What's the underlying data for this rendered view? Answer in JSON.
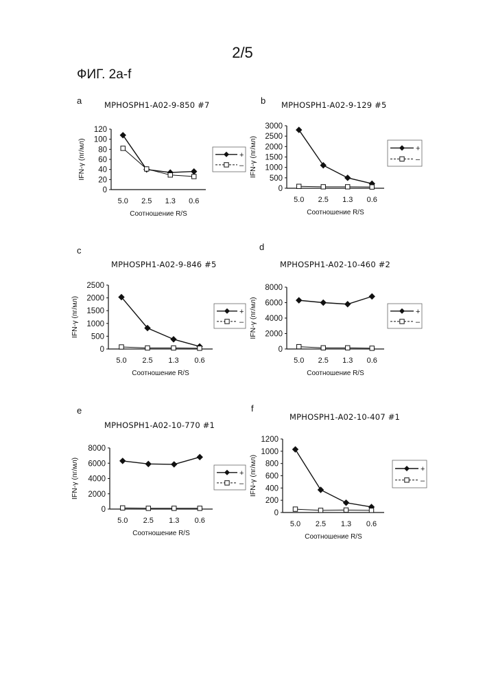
{
  "page": {
    "number": "2/5",
    "figure_title": "ФИГ. 2a-f"
  },
  "legend_labels": {
    "plus": "+",
    "minus": "–"
  },
  "chart_data": [
    {
      "id": "a",
      "type": "line",
      "title": "MPHOSPH1-A02-9-850 #7",
      "xlabel": "Соотношение R/S",
      "ylabel": "IFN-γ (пг/мл)",
      "categories": [
        "5.0",
        "2.5",
        "1.3",
        "0.6"
      ],
      "ylim": [
        0,
        120
      ],
      "yticks": [
        "0",
        "20",
        "40",
        "60",
        "80",
        "100",
        "120"
      ],
      "series": [
        {
          "name": "+",
          "marker": "diamond",
          "values": [
            108,
            40,
            34,
            36
          ]
        },
        {
          "name": "–",
          "marker": "square",
          "values": [
            82,
            41,
            29,
            26
          ]
        }
      ]
    },
    {
      "id": "b",
      "type": "line",
      "title": "MPHOSPH1-A02-9-129 #5",
      "xlabel": "Соотношение R/S",
      "ylabel": "IFN-γ (пг/мл)",
      "categories": [
        "5.0",
        "2.5",
        "1.3",
        "0.6"
      ],
      "ylim": [
        0,
        3000
      ],
      "yticks": [
        "0",
        "500",
        "1000",
        "1500",
        "2000",
        "2500",
        "3000"
      ],
      "series": [
        {
          "name": "+",
          "marker": "diamond",
          "values": [
            2800,
            1100,
            500,
            220
          ]
        },
        {
          "name": "–",
          "marker": "square",
          "values": [
            90,
            70,
            70,
            60
          ]
        }
      ]
    },
    {
      "id": "c",
      "type": "line",
      "title": "MPHOSPH1-A02-9-846 #5",
      "xlabel": "Соотношение R/S",
      "ylabel": "IFN-γ (пг/мл)",
      "categories": [
        "5.0",
        "2.5",
        "1.3",
        "0.6"
      ],
      "ylim": [
        0,
        2500
      ],
      "yticks": [
        "0",
        "500",
        "1000",
        "1500",
        "2000",
        "2500"
      ],
      "series": [
        {
          "name": "+",
          "marker": "diamond",
          "values": [
            2030,
            820,
            380,
            100
          ]
        },
        {
          "name": "–",
          "marker": "square",
          "values": [
            80,
            40,
            40,
            30
          ]
        }
      ]
    },
    {
      "id": "d",
      "type": "line",
      "title": "MPHOSPH1-A02-10-460 #2",
      "xlabel": "Соотношение R/S",
      "ylabel": "IFN-γ (пг/мл)",
      "categories": [
        "5.0",
        "2.5",
        "1.3",
        "0.6"
      ],
      "ylim": [
        0,
        8000
      ],
      "yticks": [
        "0",
        "2000",
        "4000",
        "6000",
        "8000"
      ],
      "series": [
        {
          "name": "+",
          "marker": "diamond",
          "values": [
            6300,
            6000,
            5800,
            6800
          ]
        },
        {
          "name": "–",
          "marker": "square",
          "values": [
            300,
            150,
            150,
            100
          ]
        }
      ]
    },
    {
      "id": "e",
      "type": "line",
      "title": "MPHOSPH1-A02-10-770 #1",
      "xlabel": "Соотношение R/S",
      "ylabel": "IFN-γ (пг/мл)",
      "categories": [
        "5.0",
        "2.5",
        "1.3",
        "0.6"
      ],
      "ylim": [
        0,
        8000
      ],
      "yticks": [
        "0",
        "2000",
        "4000",
        "6000",
        "8000"
      ],
      "series": [
        {
          "name": "+",
          "marker": "diamond",
          "values": [
            6300,
            5900,
            5850,
            6800
          ]
        },
        {
          "name": "–",
          "marker": "square",
          "values": [
            150,
            100,
            100,
            100
          ]
        }
      ]
    },
    {
      "id": "f",
      "type": "line",
      "title": "MPHOSPH1-A02-10-407 #1",
      "xlabel": "Соотношение R/S",
      "ylabel": "IFN-γ (пг/мл)",
      "categories": [
        "5.0",
        "2.5",
        "1.3",
        "0.6"
      ],
      "ylim": [
        0,
        1200
      ],
      "yticks": [
        "0",
        "200",
        "400",
        "600",
        "800",
        "1000",
        "1200"
      ],
      "series": [
        {
          "name": "+",
          "marker": "diamond",
          "values": [
            1030,
            370,
            160,
            90
          ]
        },
        {
          "name": "–",
          "marker": "square",
          "values": [
            55,
            35,
            40,
            35
          ]
        }
      ]
    }
  ]
}
